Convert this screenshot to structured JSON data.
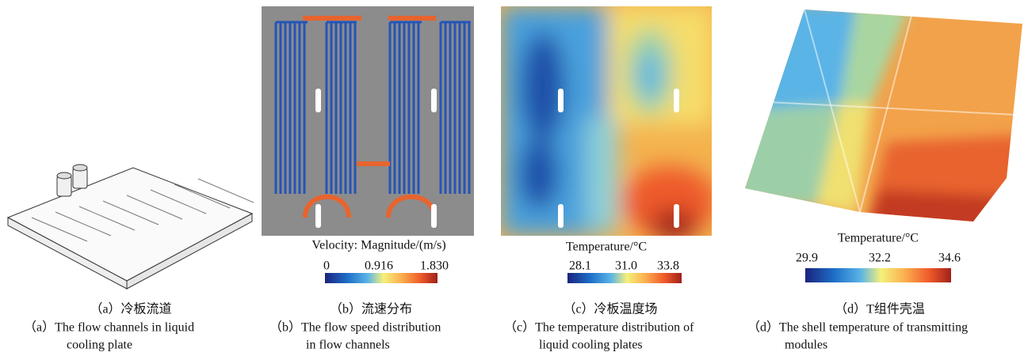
{
  "panels": [
    {
      "caption_zh": "（a）冷板流道",
      "caption_en": [
        "（a）The flow channels in liquid",
        "cooling plate"
      ]
    },
    {
      "caption_zh": "（b）流速分布",
      "caption_en": [
        "（b）The flow speed distribution",
        "in flow channels"
      ],
      "colorbar": {
        "title": "Velocity: Magnitude/(m/s)",
        "ticks": [
          "0",
          "0.916",
          "1.830"
        ]
      }
    },
    {
      "caption_zh": "（c）冷板温度场",
      "caption_en": [
        "（c）The temperature distribution of",
        "liquid cooling plates"
      ],
      "colorbar": {
        "title": "Temperature/°C",
        "ticks": [
          "28.1",
          "31.0",
          "33.8"
        ]
      }
    },
    {
      "caption_zh": "（d）T组件壳温",
      "caption_en": [
        "（d）The shell temperature of transmitting",
        "modules"
      ],
      "colorbar": {
        "title": "Temperature/°C",
        "ticks": [
          "29.9",
          "32.2",
          "34.6"
        ]
      }
    }
  ]
}
